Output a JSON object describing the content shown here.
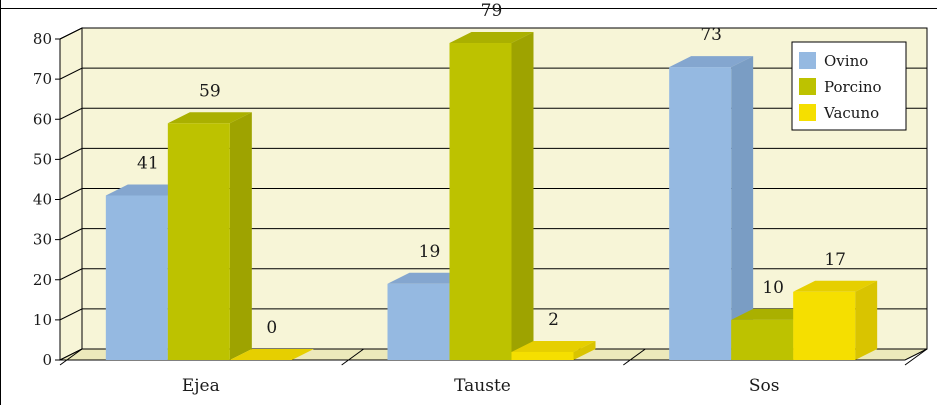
{
  "chart_data": {
    "type": "bar",
    "title": "",
    "xlabel": "",
    "ylabel": "",
    "categories": [
      "Ejea",
      "Tauste",
      "Sos"
    ],
    "series": [
      {
        "name": "Ovino",
        "values": [
          41,
          19,
          73
        ],
        "color": "#95b9e1",
        "side_color": "#7a9dc4",
        "top_color": "#84a6cf"
      },
      {
        "name": "Porcino",
        "values": [
          59,
          79,
          10
        ],
        "color": "#bdc200",
        "side_color": "#9ea300",
        "top_color": "#aab000"
      },
      {
        "name": "Vacuno",
        "values": [
          0,
          2,
          17
        ],
        "color": "#f5df00",
        "side_color": "#d9c400",
        "top_color": "#e6cf00"
      }
    ],
    "ylim": [
      0,
      80
    ],
    "yticks": [
      "0",
      "10",
      "20",
      "30",
      "40",
      "50",
      "60",
      "70",
      "80"
    ],
    "grid": true,
    "legend_position": "top-right",
    "background_color": "#f7f5d7",
    "floor_color": "#ece9bb"
  }
}
